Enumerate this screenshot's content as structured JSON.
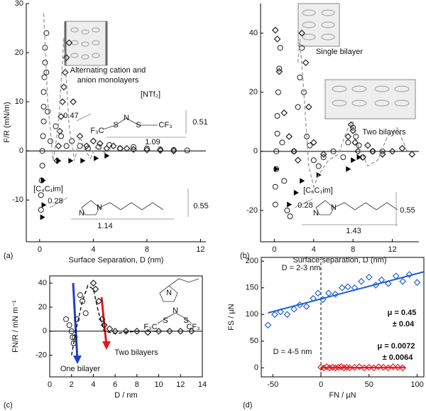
{
  "chart_data": [
    {
      "type": "scatter",
      "label": "(a)",
      "xlabel": "Surface Separation, D (nm)",
      "ylabel": "F/R (mN/m)",
      "frame": "axes",
      "zero_line": true,
      "xlim": [
        -1,
        12.4
      ],
      "ylim": [
        -18.5,
        30
      ],
      "xticks": [
        0,
        4,
        8,
        12
      ],
      "yticks": [
        -10,
        0,
        10,
        20,
        30
      ],
      "series": [
        {
          "color": "#222",
          "marker": "circle",
          "x": [
            0.1,
            0.1,
            0.15,
            0.2,
            0.2,
            0.25,
            0.3,
            0.3,
            0.3,
            0.35,
            0.4,
            0.4,
            0.5,
            0.5,
            0.6,
            0.8,
            1.2,
            1.6,
            2.0,
            2.4,
            3.0,
            3.6,
            4.4,
            5.2,
            6.0,
            7.0,
            8.0,
            9.0,
            10.0,
            11.0
          ],
          "values": [
            -12,
            -9,
            -6,
            -3,
            0,
            3,
            6,
            9,
            12,
            15,
            18,
            21,
            24,
            16,
            8,
            2,
            5,
            3,
            1,
            2,
            1,
            0.5,
            0.8,
            1.2,
            0.5,
            0.8,
            0.5,
            0.3,
            0.2,
            0.1
          ]
        },
        {
          "color": "#222",
          "marker": "diamond",
          "x": [
            1.3,
            1.4,
            1.5,
            1.6,
            1.7,
            1.8,
            1.9,
            2.0,
            2.2,
            2.5,
            3,
            3.5,
            4,
            4.5,
            5,
            5.5,
            6,
            6.5,
            7,
            8,
            9,
            10
          ],
          "values": [
            -2,
            1,
            4,
            7,
            10,
            13,
            16,
            19,
            22,
            10,
            3,
            1,
            2,
            1.5,
            0.5,
            1,
            0.5,
            0.5,
            0.3,
            0.2,
            0.1,
            0
          ]
        },
        {
          "color": "#000",
          "marker": "triangle",
          "x": [
            0.2,
            0.25,
            0.3,
            1.4,
            2.3,
            3.2,
            4.2,
            5.0
          ],
          "values": [
            -13.5,
            -6,
            -11,
            -2,
            -2,
            -2,
            -1.5,
            -1
          ]
        },
        {
          "color": "#999",
          "marker": "none",
          "line": "dashed",
          "x": [
            0.3,
            0.6,
            1.0,
            1.4,
            1.8,
            2.2,
            2.6,
            3.0,
            3.4,
            3.8,
            4.2,
            4.6,
            5.0
          ],
          "values": [
            28,
            10,
            -2,
            5,
            23,
            5,
            -2,
            3,
            0,
            -1.5,
            1,
            0,
            -0.5
          ]
        }
      ],
      "annotations": [
        "Alternating cation and",
        "anion monolayers",
        "[NTf₂]",
        "0.47",
        "0.51",
        "1.09",
        "F₃C",
        "S",
        "N",
        "S",
        "CF₃",
        "[C₄C₁im]",
        "0.28",
        "1.14",
        "0.55",
        "N",
        "N"
      ]
    },
    {
      "type": "scatter",
      "label": "(b)",
      "xlabel": "Surface separation, D (nm)",
      "ylabel": "",
      "frame": "axes",
      "zero_line": true,
      "xlim": [
        -1.4,
        14.7
      ],
      "ylim": [
        -30.6,
        50
      ],
      "xticks": [
        0,
        4,
        8,
        12
      ],
      "yticks": [
        -20,
        0,
        20,
        40
      ],
      "series": [
        {
          "color": "#222",
          "marker": "circle",
          "x": [
            0.1,
            0.1,
            0.2,
            0.2,
            0.3,
            0.3,
            0.4,
            0.5,
            0.6,
            0.8,
            1.0,
            1.3,
            1.6,
            2.0,
            2.4,
            2.6,
            2.8,
            3.0,
            3.3,
            3.6,
            4,
            4.5,
            5,
            6,
            7,
            7.5,
            8,
            8.3,
            8.6,
            9,
            10,
            11
          ],
          "values": [
            -18,
            -12,
            -6,
            0,
            6,
            12,
            20,
            28,
            35,
            3,
            -10,
            -20,
            -22,
            0,
            15,
            25,
            35,
            20,
            5,
            2,
            -3,
            -5,
            -2,
            0,
            -2,
            3,
            8,
            5,
            2,
            -2,
            0,
            0
          ]
        },
        {
          "color": "#222",
          "marker": "diamond",
          "x": [
            0.1,
            0.3,
            0.5,
            1.0,
            1.5,
            2.0,
            2.4,
            2.8,
            3.2,
            3.5,
            4,
            5,
            7.5,
            7.8,
            8,
            8.2,
            8.5,
            9,
            9.5,
            10,
            11,
            12,
            13,
            14
          ],
          "values": [
            41,
            38,
            27,
            13,
            5,
            0,
            -3,
            40,
            30,
            15,
            3,
            -1,
            5,
            9,
            7,
            3,
            0,
            -2,
            2,
            0,
            -1,
            0,
            1,
            -1
          ]
        },
        {
          "color": "#000",
          "marker": "triangle",
          "x": [
            0.2,
            1.5,
            2.2,
            2.8,
            4.5,
            7.5,
            8.0,
            8.6
          ],
          "values": [
            -6,
            -18,
            -14,
            -10,
            -8,
            -6,
            -3,
            -2
          ]
        },
        {
          "color": "#999",
          "marker": "none",
          "line": "dashed",
          "x": [
            2.4,
            2.6,
            3.0,
            3.5,
            4.0,
            4.5,
            5.5,
            6.5,
            7.5,
            8.0,
            8.5,
            9.5,
            10.5,
            11.5,
            12.5,
            13.5
          ],
          "values": [
            30,
            38,
            20,
            -5,
            -12,
            -8,
            -3,
            -1,
            8,
            10,
            2,
            -5,
            -3,
            5,
            8,
            0
          ]
        }
      ],
      "annotations": [
        "Single bilayer",
        "Two bilayers",
        "[C₆C₁im]",
        "0.28",
        "1.43",
        "0.55",
        "N",
        "N"
      ]
    },
    {
      "type": "scatter",
      "label": "(c)",
      "xlabel": "D / nm",
      "ylabel": "FN/R / mN m⁻¹",
      "frame": "box",
      "zero_line": true,
      "xlim": [
        0,
        14
      ],
      "ylim": [
        -38,
        46
      ],
      "xticks": [
        0,
        2,
        4,
        6,
        8,
        10,
        12,
        14
      ],
      "yticks": [
        -20,
        0,
        20,
        40
      ],
      "series": [
        {
          "color": "#222",
          "marker": "circle",
          "x": [
            1.5,
            1.8,
            2.0,
            2.1,
            2.2,
            2.3,
            2.5,
            2.8,
            3.0,
            3.3
          ],
          "values": [
            10,
            5,
            0,
            -5,
            -10,
            -5,
            10,
            30,
            25,
            15
          ]
        },
        {
          "color": "#222",
          "marker": "diamond",
          "x": [
            4.0,
            4.2,
            4.5,
            4.8,
            5.0,
            5.5,
            6,
            7,
            8,
            9,
            10,
            11,
            12,
            13
          ],
          "values": [
            40,
            35,
            25,
            10,
            5,
            2,
            0,
            0,
            0,
            -1,
            0,
            0,
            0,
            0
          ]
        },
        {
          "color": "#000",
          "marker": "none",
          "line": "dashed",
          "x": [
            2.0,
            2.5,
            3.0,
            3.5,
            4.0,
            4.5,
            5,
            6,
            7,
            8,
            9,
            10
          ],
          "values": [
            -20,
            5,
            25,
            38,
            35,
            15,
            0,
            -2,
            -1,
            0,
            0,
            0
          ]
        }
      ],
      "annotations": [
        "One bilayer",
        "Two bilayers",
        "N",
        "F₃C",
        "S",
        "N",
        "S",
        "CF₃"
      ]
    },
    {
      "type": "scatter",
      "label": "(d)",
      "xlabel": "FN / µN",
      "ylabel": "FS / µN",
      "frame": "box",
      "zero_line": false,
      "vline_zero": true,
      "xlim": [
        -62,
        107
      ],
      "ylim": [
        -17,
        207
      ],
      "xticks": [
        -50,
        0,
        50,
        100
      ],
      "yticks": [
        0,
        50,
        100,
        150,
        200
      ],
      "series": [
        {
          "color": "#1f5fd6",
          "marker": "diamond",
          "x": [
            -55,
            -48,
            -42,
            -35,
            -28,
            -22,
            -15,
            -8,
            -3,
            2,
            8,
            15,
            22,
            28,
            35,
            42,
            50,
            57,
            63,
            70,
            78,
            85,
            92,
            100
          ],
          "values": [
            80,
            100,
            105,
            100,
            110,
            118,
            115,
            130,
            140,
            128,
            140,
            138,
            150,
            152,
            150,
            162,
            170,
            155,
            165,
            158,
            172,
            162,
            175,
            160
          ]
        },
        {
          "color": "#e8141e",
          "marker": "diamond",
          "x": [
            0,
            3,
            6,
            9,
            12,
            15,
            18,
            21,
            24,
            27,
            30,
            35,
            40,
            45,
            50,
            55,
            60,
            65,
            70,
            75,
            80,
            85
          ],
          "values": [
            1,
            0,
            2,
            0,
            1,
            0,
            1,
            2,
            0,
            1,
            0,
            1,
            2,
            0,
            1,
            0,
            2,
            1,
            0,
            2,
            1,
            0
          ]
        },
        {
          "color": "#1f5fd6",
          "marker": "none",
          "line": "solid",
          "x": [
            -55,
            107
          ],
          "values": [
            103,
            180
          ]
        },
        {
          "color": "#e8141e",
          "marker": "none",
          "line": "solid",
          "x": [
            0,
            88
          ],
          "values": [
            0,
            0.6
          ]
        }
      ],
      "annotations": [
        "D = 2-3 nm",
        "μ = 0.45",
        "± 0.04",
        "D = 4-5 nm",
        "μ = 0.0072",
        "± 0.0064"
      ]
    }
  ]
}
